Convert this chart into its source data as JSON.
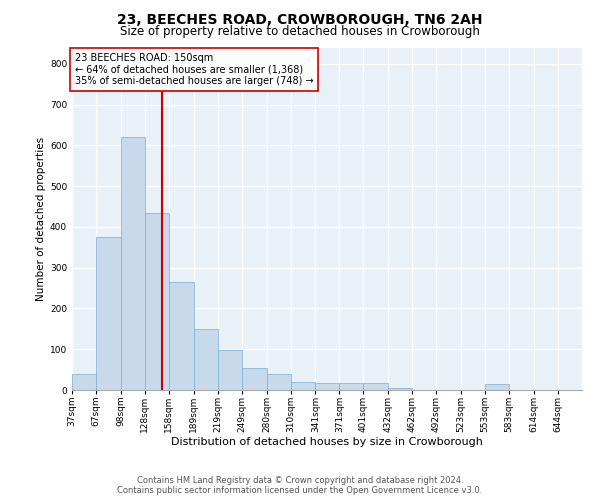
{
  "title": "23, BEECHES ROAD, CROWBOROUGH, TN6 2AH",
  "subtitle": "Size of property relative to detached houses in Crowborough",
  "xlabel": "Distribution of detached houses by size in Crowborough",
  "ylabel": "Number of detached properties",
  "footer_line1": "Contains HM Land Registry data © Crown copyright and database right 2024.",
  "footer_line2": "Contains public sector information licensed under the Open Government Licence v3.0.",
  "bar_left_edges": [
    37,
    67,
    98,
    128,
    158,
    189,
    219,
    249,
    280,
    310,
    341,
    371,
    401,
    432,
    462,
    492,
    523,
    553,
    583,
    614
  ],
  "bar_widths": [
    30,
    31,
    30,
    30,
    31,
    30,
    30,
    31,
    30,
    31,
    30,
    30,
    31,
    30,
    30,
    31,
    30,
    30,
    31,
    30
  ],
  "bar_heights": [
    40,
    375,
    620,
    435,
    265,
    150,
    97,
    55,
    40,
    20,
    18,
    18,
    18,
    5,
    0,
    0,
    0,
    15,
    0,
    0
  ],
  "bar_color": "#c8d9ec",
  "bar_edge_color": "#7aadd4",
  "bg_color": "#e8f0f8",
  "grid_color": "#ffffff",
  "vline_x": 150,
  "vline_color": "#cc0000",
  "annotation_line1": "23 BEECHES ROAD: 150sqm",
  "annotation_line2": "← 64% of detached houses are smaller (1,368)",
  "annotation_line3": "35% of semi-detached houses are larger (748) →",
  "annotation_box_color": "#ffffff",
  "annotation_box_edge": "#cc0000",
  "ylim": [
    0,
    840
  ],
  "yticks": [
    0,
    100,
    200,
    300,
    400,
    500,
    600,
    700,
    800
  ],
  "xtick_labels": [
    "37sqm",
    "67sqm",
    "98sqm",
    "128sqm",
    "158sqm",
    "189sqm",
    "219sqm",
    "249sqm",
    "280sqm",
    "310sqm",
    "341sqm",
    "371sqm",
    "401sqm",
    "432sqm",
    "462sqm",
    "492sqm",
    "523sqm",
    "553sqm",
    "583sqm",
    "614sqm",
    "644sqm"
  ],
  "xtick_positions": [
    37,
    67,
    98,
    128,
    158,
    189,
    219,
    249,
    280,
    310,
    341,
    371,
    401,
    432,
    462,
    492,
    523,
    553,
    583,
    614,
    644
  ],
  "title_fontsize": 10,
  "subtitle_fontsize": 8.5,
  "axis_label_fontsize": 7.5,
  "tick_fontsize": 6.5,
  "annotation_fontsize": 7,
  "footer_fontsize": 6
}
